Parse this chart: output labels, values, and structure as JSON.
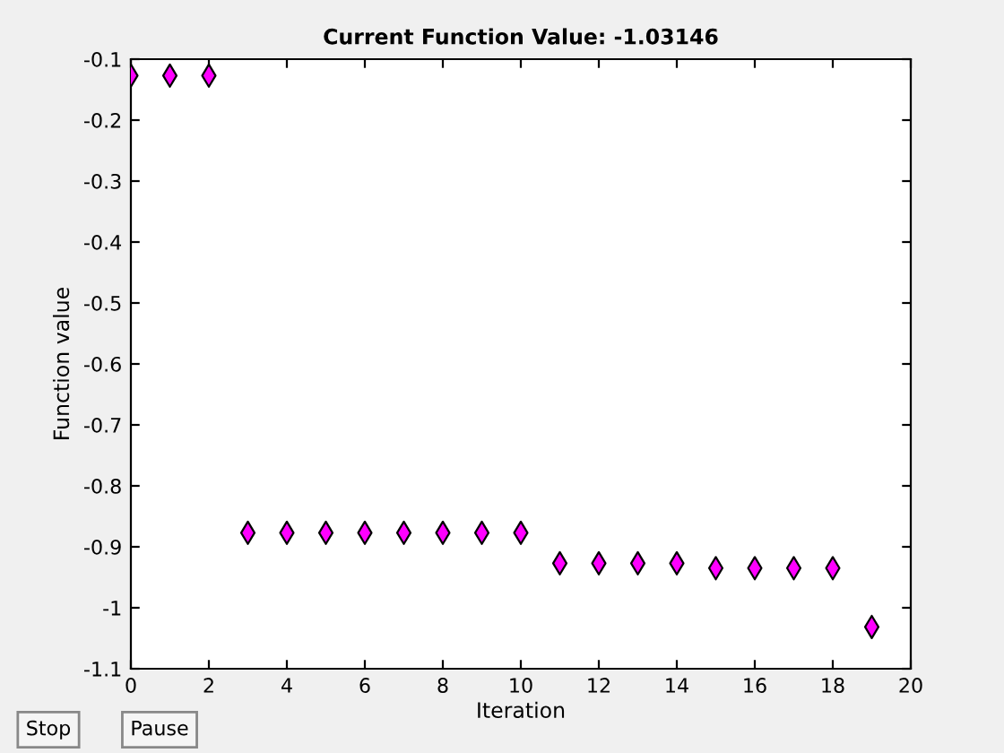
{
  "chart_data": {
    "type": "scatter",
    "title": "Current Function Value: -1.03146",
    "xlabel": "Iteration",
    "ylabel": "Function value",
    "x": [
      0,
      1,
      2,
      3,
      4,
      5,
      6,
      7,
      8,
      9,
      10,
      11,
      12,
      13,
      14,
      15,
      16,
      17,
      18,
      19
    ],
    "series": [
      {
        "color": "#ff00ff",
        "values": [
          -0.127,
          -0.127,
          -0.127,
          -0.877,
          -0.877,
          -0.877,
          -0.877,
          -0.877,
          -0.877,
          -0.877,
          -0.877,
          -0.927,
          -0.927,
          -0.927,
          -0.927,
          -0.935,
          -0.935,
          -0.935,
          -0.935,
          -1.03146
        ]
      }
    ],
    "marker": "diamond",
    "xlim": [
      0,
      20
    ],
    "xticks": [
      0,
      2,
      4,
      6,
      8,
      10,
      12,
      14,
      16,
      18,
      20
    ],
    "ylim": [
      -1.1,
      -0.1
    ],
    "yticks": [
      -1.1,
      -1,
      -0.9,
      -0.8,
      -0.7,
      -0.6,
      -0.5,
      -0.4,
      -0.3,
      -0.2,
      -0.1
    ],
    "grid": false,
    "annotations": [
      "Stop",
      "Pause"
    ]
  }
}
